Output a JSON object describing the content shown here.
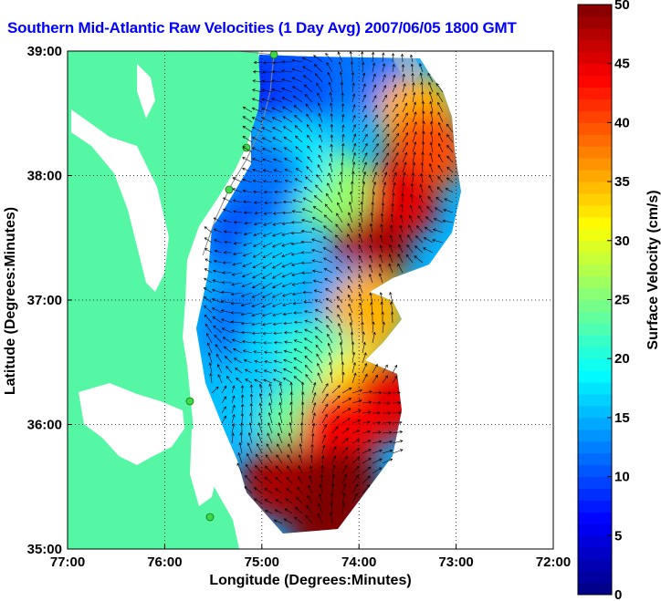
{
  "title": "Southern Mid-Atlantic Raw Velocities (1 Day Avg) 2007/06/05 1800 GMT",
  "chart_data": {
    "type": "heatmap",
    "title": "Southern Mid-Atlantic Raw Velocities (1 Day Avg) 2007/06/05 1800 GMT",
    "xlabel": "Longitude (Degrees:Minutes)",
    "ylabel": "Latitude (Degrees:Minutes)",
    "x_ticks": [
      "77:00",
      "76:00",
      "75:00",
      "74:00",
      "73:00",
      "72:00"
    ],
    "y_ticks": [
      "39:00",
      "38:00",
      "37:00",
      "36:00",
      "35:00"
    ],
    "x_range": [
      -77,
      -72
    ],
    "y_range": [
      35,
      39
    ],
    "grid": true,
    "colorbar": {
      "label": "Surface Velocity (cm/s)",
      "range": [
        0,
        50
      ],
      "ticks": [
        "0",
        "5",
        "10",
        "15",
        "20",
        "25",
        "30",
        "35",
        "40",
        "45",
        "50"
      ],
      "colormap": "jet"
    },
    "land_color": "#55f7a5",
    "velocity_regions": [
      {
        "lon": -74.85,
        "lat": 38.75,
        "speed": 8
      },
      {
        "lon": -74.5,
        "lat": 38.8,
        "speed": 10
      },
      {
        "lon": -73.9,
        "lat": 38.8,
        "speed": 12
      },
      {
        "lon": -73.4,
        "lat": 38.5,
        "speed": 35
      },
      {
        "lon": -73.3,
        "lat": 38.2,
        "speed": 40
      },
      {
        "lon": -73.6,
        "lat": 37.8,
        "speed": 45
      },
      {
        "lon": -73.9,
        "lat": 37.4,
        "speed": 48
      },
      {
        "lon": -74.3,
        "lat": 37.9,
        "speed": 26
      },
      {
        "lon": -74.7,
        "lat": 38.1,
        "speed": 18
      },
      {
        "lon": -75.0,
        "lat": 38.0,
        "speed": 12
      },
      {
        "lon": -75.15,
        "lat": 37.5,
        "speed": 10
      },
      {
        "lon": -74.8,
        "lat": 37.3,
        "speed": 16
      },
      {
        "lon": -74.2,
        "lat": 37.0,
        "speed": 14
      },
      {
        "lon": -73.9,
        "lat": 36.9,
        "speed": 35
      },
      {
        "lon": -75.2,
        "lat": 36.8,
        "speed": 12
      },
      {
        "lon": -74.8,
        "lat": 36.6,
        "speed": 17
      },
      {
        "lon": -74.4,
        "lat": 36.5,
        "speed": 22
      },
      {
        "lon": -74.0,
        "lat": 36.3,
        "speed": 32
      },
      {
        "lon": -73.7,
        "lat": 36.2,
        "speed": 45
      },
      {
        "lon": -75.1,
        "lat": 36.2,
        "speed": 16
      },
      {
        "lon": -74.6,
        "lat": 36.0,
        "speed": 24
      },
      {
        "lon": -74.2,
        "lat": 35.95,
        "speed": 44
      },
      {
        "lon": -74.8,
        "lat": 35.55,
        "speed": 48
      },
      {
        "lon": -74.2,
        "lat": 35.5,
        "speed": 50
      },
      {
        "lon": -74.3,
        "lat": 35.2,
        "speed": 50
      }
    ]
  }
}
